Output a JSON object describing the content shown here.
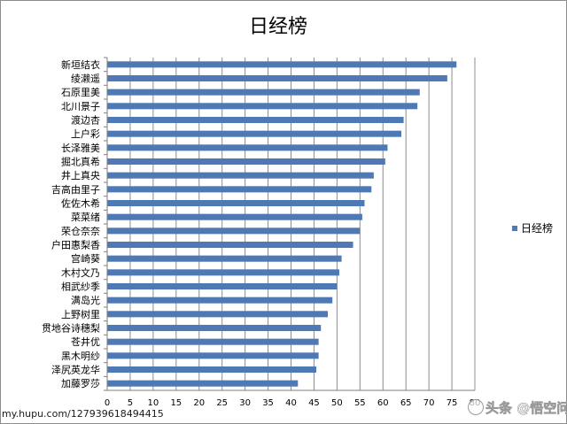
{
  "chart_data": {
    "type": "bar",
    "orientation": "horizontal",
    "title": "日经榜",
    "categories": [
      "新垣结衣",
      "绫濑遥",
      "石原里美",
      "北川景子",
      "渡边杏",
      "上户彩",
      "长泽雅美",
      "掘北真希",
      "井上真央",
      "吉高由里子",
      "佐佐木希",
      "菜菜绪",
      "荣仓奈奈",
      "户田惠梨香",
      "宫崎葵",
      "木村文乃",
      "相武纱季",
      "满岛光",
      "上野树里",
      "贯地谷诗穗梨",
      "苍井优",
      "黑木明纱",
      "泽尻英龙华",
      "加藤罗莎"
    ],
    "series": [
      {
        "name": "日经榜",
        "values": [
          76,
          74,
          68,
          67.5,
          64.5,
          64,
          61,
          60.5,
          58,
          57.5,
          56,
          55.5,
          55,
          53.5,
          51,
          50.5,
          50,
          49,
          48,
          46.5,
          46,
          46,
          45.5,
          41.5
        ]
      }
    ],
    "xlim": [
      0,
      80
    ],
    "xticks": [
      "0",
      "5",
      "10",
      "15",
      "20",
      "25",
      "30",
      "35",
      "40",
      "45",
      "50",
      "55",
      "60",
      "65",
      "70",
      "75",
      "80"
    ],
    "grid": "vertical",
    "legend": "right",
    "colors": {
      "bar": "#4f79b5",
      "grid": "#8c8c8c"
    }
  },
  "watermarks": {
    "left": "my.hupu.com/127939618494415",
    "right": "头条 @悟空问答"
  }
}
